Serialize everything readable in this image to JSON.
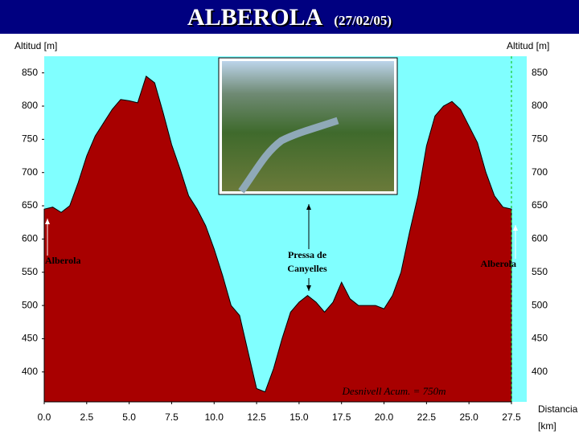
{
  "chart_data": {
    "type": "area",
    "title": "ALBEROLA",
    "subtitle": "(27/02/05)",
    "y_label": "Altitud [m]",
    "x_label": "Distancia",
    "x_unit": "[km]",
    "x": [
      0,
      0.5,
      1,
      1.5,
      2,
      2.5,
      3,
      3.5,
      4,
      4.5,
      5,
      5.5,
      6,
      6.5,
      7,
      7.5,
      8,
      8.5,
      9,
      9.5,
      10,
      10.5,
      11,
      11.5,
      12,
      12.5,
      13,
      13.5,
      14,
      14.5,
      15,
      15.5,
      16,
      16.5,
      17,
      17.5,
      18,
      18.5,
      19,
      19.5,
      20,
      20.5,
      21,
      21.5,
      22,
      22.5,
      23,
      23.5,
      24,
      24.5,
      25,
      25.5,
      26,
      26.5,
      27,
      27.5
    ],
    "series": [
      {
        "color": "#a80000",
        "values": [
          645,
          648,
          640,
          650,
          685,
          725,
          755,
          775,
          795,
          810,
          808,
          805,
          845,
          835,
          790,
          742,
          705,
          665,
          645,
          620,
          585,
          545,
          500,
          485,
          430,
          375,
          370,
          405,
          450,
          490,
          505,
          515,
          505,
          490,
          505,
          535,
          510,
          500,
          500,
          500,
          495,
          515,
          550,
          610,
          665,
          740,
          785,
          800,
          807,
          795,
          770,
          745,
          700,
          665,
          648,
          645
        ]
      }
    ],
    "background": "#80ffff",
    "xlim": [
      0,
      28.4
    ],
    "ylim": [
      355,
      875
    ],
    "xticks": [
      {
        "value": 0,
        "label": "0.0"
      },
      {
        "value": 2.5,
        "label": "2.5"
      },
      {
        "value": 5,
        "label": "5.0"
      },
      {
        "value": 7.5,
        "label": "7.5"
      },
      {
        "value": 10,
        "label": "10.0"
      },
      {
        "value": 12.5,
        "label": "12.5"
      },
      {
        "value": 15,
        "label": "15.0"
      },
      {
        "value": 17.5,
        "label": "17.5"
      },
      {
        "value": 20,
        "label": "20.0"
      },
      {
        "value": 22.5,
        "label": "22.5"
      },
      {
        "value": 25,
        "label": "25.0"
      },
      {
        "value": 27.5,
        "label": "27.5"
      }
    ],
    "yticks": [
      400,
      450,
      500,
      550,
      600,
      650,
      700,
      750,
      800,
      850
    ],
    "annotations": [
      "Alberola",
      "Pressa de",
      "Canyelles",
      "Alberola",
      "Desnivell Acum. = 750m"
    ]
  }
}
